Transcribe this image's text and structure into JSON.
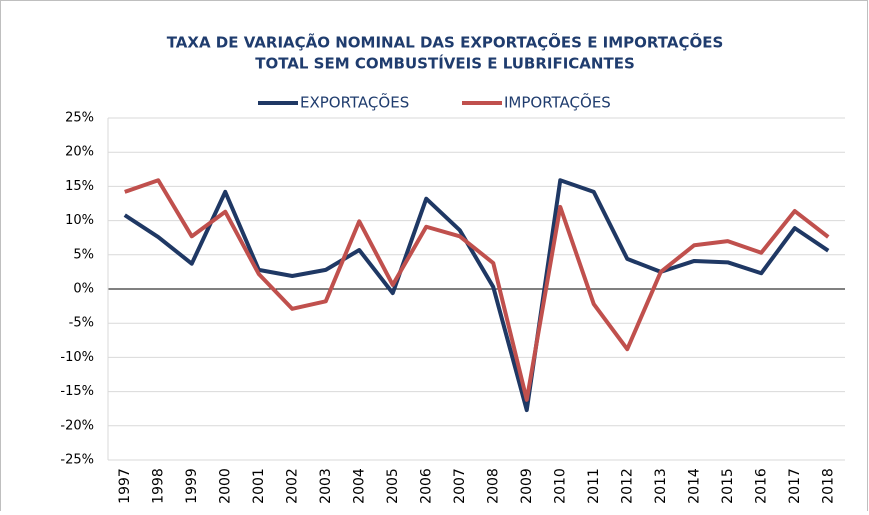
{
  "chart_data": {
    "type": "line",
    "title_lines": [
      "TAXA DE VARIAÇÃO NOMINAL DAS EXPORTAÇÕES E IMPORTAÇÕES",
      "TOTAL SEM COMBUSTÍVEIS E LUBRIFICANTES"
    ],
    "categories": [
      "1997",
      "1998",
      "1999",
      "2000",
      "2001",
      "2002",
      "2003",
      "2004",
      "2005",
      "2006",
      "2007",
      "2008",
      "2009",
      "2010",
      "2011",
      "2012",
      "2013",
      "2014",
      "2015",
      "2016",
      "2017",
      "2018"
    ],
    "series": [
      {
        "name": "EXPORTAÇÕES",
        "color": "#1f3864",
        "values": [
          10.8,
          7.6,
          3.7,
          14.2,
          2.8,
          1.9,
          2.8,
          5.7,
          -0.6,
          13.2,
          8.6,
          0.3,
          -17.7,
          15.9,
          14.2,
          4.4,
          2.5,
          4.1,
          3.9,
          2.3,
          8.9,
          5.6
        ]
      },
      {
        "name": "IMPORTAÇÕES",
        "color": "#c0504d",
        "values": [
          14.2,
          15.9,
          7.7,
          11.3,
          2.2,
          -2.9,
          -1.8,
          9.9,
          0.6,
          9.1,
          7.7,
          3.8,
          -16.2,
          12.0,
          -2.2,
          -8.8,
          2.5,
          6.4,
          7.0,
          5.3,
          11.4,
          7.6
        ]
      }
    ],
    "ylim": [
      -25,
      25
    ],
    "yticks": [
      {
        "value": -25,
        "label": "-25%"
      },
      {
        "value": -20,
        "label": "-20%"
      },
      {
        "value": -15,
        "label": "-15%"
      },
      {
        "value": -10,
        "label": "-10%"
      },
      {
        "value": -5,
        "label": "-5%"
      },
      {
        "value": 0,
        "label": "0%"
      },
      {
        "value": 5,
        "label": "5%"
      },
      {
        "value": 10,
        "label": "10%"
      },
      {
        "value": 15,
        "label": "15%"
      },
      {
        "value": 20,
        "label": "20%"
      },
      {
        "value": 25,
        "label": "25%"
      }
    ],
    "grid": true,
    "legend": "top"
  }
}
